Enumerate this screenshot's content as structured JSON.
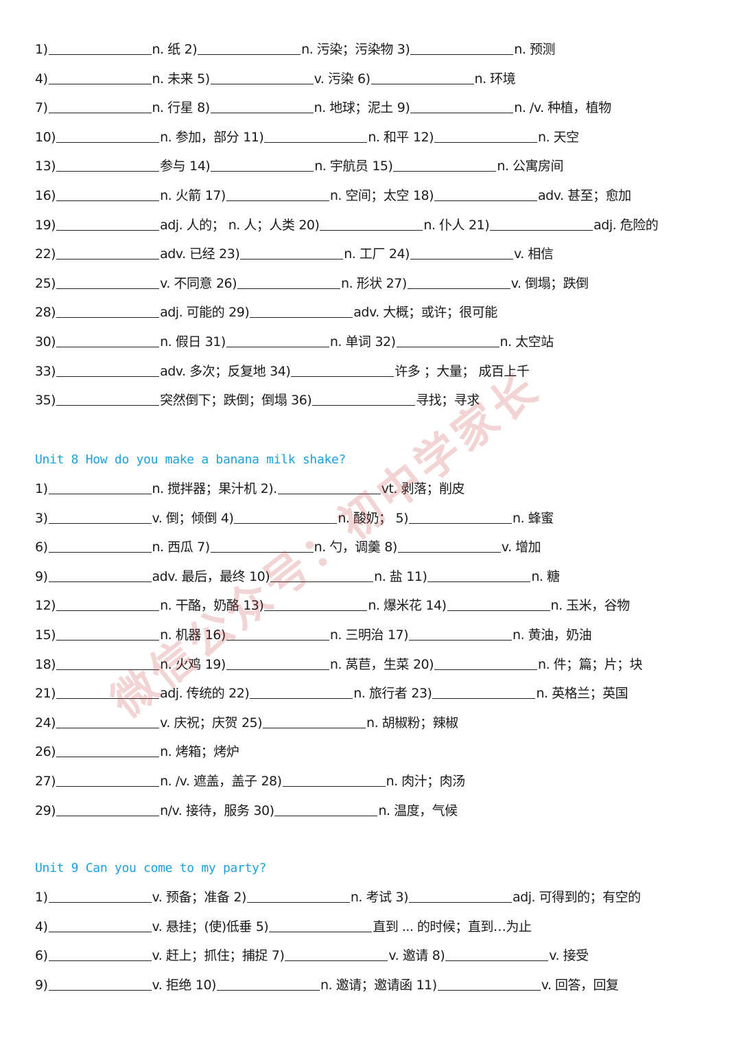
{
  "watermark": "微信公众号：初中学家长",
  "colors": {
    "heading": "#1ea0dc",
    "watermark": "#c83c3c"
  },
  "sections": [
    {
      "heading": "",
      "rows": [
        [
          {
            "n": "1)",
            "d": "n. 纸"
          },
          {
            "n": "2)",
            "d": "n. 污染；污染物"
          },
          {
            "n": "3)",
            "d": "n. 预测"
          }
        ],
        [
          {
            "n": "4)",
            "d": "n. 未来"
          },
          {
            "n": "5)",
            "d": "v. 污染"
          },
          {
            "n": "6)",
            "d": "n. 环境"
          }
        ],
        [
          {
            "n": "7)",
            "d": "n. 行星"
          },
          {
            "n": "8)",
            "d": "n. 地球；泥土"
          },
          {
            "n": "9)",
            "d": "n. /v. 种植，植物"
          }
        ],
        [
          {
            "n": "10)",
            "d": "n. 参加，部分"
          },
          {
            "n": "11)",
            "d": "n. 和平"
          },
          {
            "n": "12)",
            "d": "n. 天空"
          }
        ],
        [
          {
            "n": "13)",
            "d": "参与"
          },
          {
            "n": "14)",
            "d": "n. 宇航员"
          },
          {
            "n": "15)",
            "d": "n. 公寓房间"
          }
        ],
        [
          {
            "n": "16)",
            "d": "n. 火箭"
          },
          {
            "n": "17)",
            "d": "n. 空间；太空"
          },
          {
            "n": "18)",
            "d": "adv. 甚至；愈加"
          }
        ],
        [
          {
            "n": "19)",
            "d": "adj. 人的； n. 人；人类"
          },
          {
            "n": "20)",
            "d": "n. 仆人"
          },
          {
            "n": "21)",
            "d": "adj. 危险的"
          }
        ],
        [
          {
            "n": "22)",
            "d": "adv. 已经"
          },
          {
            "n": "23)",
            "d": "n. 工厂"
          },
          {
            "n": "24)",
            "d": "v. 相信"
          }
        ],
        [
          {
            "n": "25)",
            "d": "v. 不同意"
          },
          {
            "n": "26)",
            "d": "n. 形状"
          },
          {
            "n": "27)",
            "d": "v. 倒塌；跌倒"
          }
        ],
        [
          {
            "n": "28)",
            "d": "adj. 可能的"
          },
          {
            "n": "29)",
            "d": "adv. 大概；或许；很可能"
          }
        ],
        [
          {
            "n": "30)",
            "d": "n. 假日"
          },
          {
            "n": "31)",
            "d": "n. 单词"
          },
          {
            "n": "32)",
            "d": "n. 太空站"
          }
        ],
        [
          {
            "n": "33)",
            "d": "adv. 多次；反复地"
          },
          {
            "n": "34)",
            "d": "许多 ；大量； 成百上千"
          }
        ],
        [
          {
            "n": "35)",
            "d": "突然倒下；跌倒；倒塌"
          },
          {
            "n": "36)",
            "d": "寻找；寻求"
          }
        ]
      ]
    },
    {
      "heading": "Unit 8 How do you make a banana milk shake?",
      "rows": [
        [
          {
            "n": "1)",
            "d": "n. 搅拌器；果汁机"
          },
          {
            "n": "2).",
            "d": "vt. 剥落；削皮"
          }
        ],
        [
          {
            "n": "3)",
            "d": "v. 倒；倾倒"
          },
          {
            "n": "4)",
            "d": "n. 酸奶；"
          },
          {
            "n": "5)",
            "d": "n. 蜂蜜"
          }
        ],
        [
          {
            "n": "6)",
            "d": "n. 西瓜"
          },
          {
            "n": "7)",
            "d": "n. 勺，调羹"
          },
          {
            "n": "8)",
            "d": "v. 增加"
          }
        ],
        [
          {
            "n": "9)",
            "d": "adv. 最后，最终"
          },
          {
            "n": "10)",
            "d": "n. 盐"
          },
          {
            "n": "11)",
            "d": "n. 糖"
          }
        ],
        [
          {
            "n": "12)",
            "d": "n. 干酪，奶酪"
          },
          {
            "n": "13)",
            "d": "n. 爆米花"
          },
          {
            "n": "14)",
            "d": "n. 玉米，谷物"
          }
        ],
        [
          {
            "n": "15)",
            "d": "n. 机器"
          },
          {
            "n": "16)",
            "d": "n. 三明治"
          },
          {
            "n": "17)",
            "d": "n. 黄油，奶油"
          }
        ],
        [
          {
            "n": "18)",
            "d": "n. 火鸡"
          },
          {
            "n": "19)",
            "d": "n. 莴苣，生菜"
          },
          {
            "n": "20)",
            "d": "n. 件；篇；片；块"
          }
        ],
        [
          {
            "n": "21)",
            "d": "adj. 传统的"
          },
          {
            "n": "22)",
            "d": "n. 旅行者"
          },
          {
            "n": "23)",
            "d": "n. 英格兰；英国"
          }
        ],
        [
          {
            "n": "24)",
            "d": "v. 庆祝；庆贺"
          },
          {
            "n": "25)",
            "d": "n. 胡椒粉；辣椒"
          }
        ],
        [
          {
            "n": "26)",
            "d": "n. 烤箱；烤炉"
          }
        ],
        [
          {
            "n": "27)",
            "d": "n. /v. 遮盖，盖子"
          },
          {
            "n": "28)",
            "d": "n. 肉汁；肉汤"
          }
        ],
        [
          {
            "n": "29)",
            "d": "n/v. 接待，服务"
          },
          {
            "n": "30)",
            "d": "n. 温度，气候"
          }
        ]
      ]
    },
    {
      "heading": "Unit 9 Can you come to my party?",
      "rows": [
        [
          {
            "n": "1)",
            "d": "v. 预备；准备"
          },
          {
            "n": "2)",
            "d": "n. 考试"
          },
          {
            "n": "3)",
            "d": "adj. 可得到的；有空的"
          }
        ],
        [
          {
            "n": "4)",
            "d": "v. 悬挂；(使)低垂"
          },
          {
            "n": "5)",
            "d": "直到 ... 的时候；直到…为止"
          }
        ],
        [
          {
            "n": "6)",
            "d": "v. 赶上；抓住；捕捉"
          },
          {
            "n": "7)",
            "d": "v. 邀请"
          },
          {
            "n": "8)",
            "d": "v. 接受"
          }
        ],
        [
          {
            "n": "9)",
            "d": "v. 拒绝"
          },
          {
            "n": "10)",
            "d": "n. 邀请；邀请函"
          },
          {
            "n": "11)",
            "d": "v. 回答，回复"
          }
        ]
      ]
    }
  ]
}
